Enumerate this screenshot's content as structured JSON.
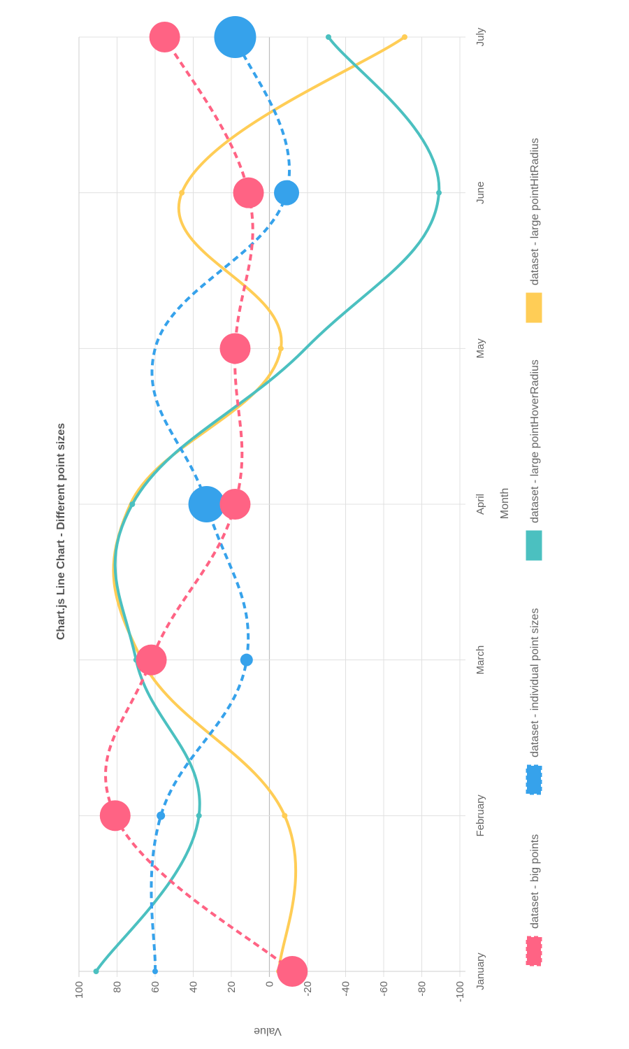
{
  "chart_data": {
    "type": "line",
    "title": "Chart.js Line Chart - Different point sizes",
    "xlabel": "Month",
    "ylabel": "Value",
    "categories": [
      "January",
      "February",
      "March",
      "April",
      "May",
      "June",
      "July"
    ],
    "ylim": [
      -100,
      100
    ],
    "yticks": [
      "100",
      "80",
      "60",
      "40",
      "20",
      "0",
      "-20",
      "-40",
      "-60",
      "-80",
      "-100"
    ],
    "grid": true,
    "legend_position": "bottom",
    "series": [
      {
        "name": "dataset - big points",
        "color": "#ff6384",
        "dashed": true,
        "fill_legend": "#ff6384",
        "values": [
          -12,
          81,
          62,
          18,
          18,
          11,
          55
        ]
      },
      {
        "name": "dataset - individual point sizes",
        "color": "#36a2eb",
        "dashed": true,
        "fill_legend": "#36a2eb",
        "values": [
          60,
          57,
          12,
          33,
          60,
          -9,
          18
        ]
      },
      {
        "name": "dataset - large pointHoverRadius",
        "color": "#4bc0c0",
        "dashed": false,
        "fill_legend": "#4bc0c0",
        "values": [
          91,
          37,
          70,
          72,
          -19,
          -89,
          -31
        ]
      },
      {
        "name": "dataset - large pointHitRadius",
        "color": "#ffcd56",
        "dashed": false,
        "fill_legend": "#ffcd56",
        "values": [
          -5,
          -8,
          67,
          73,
          -6,
          46,
          -71
        ]
      }
    ]
  }
}
